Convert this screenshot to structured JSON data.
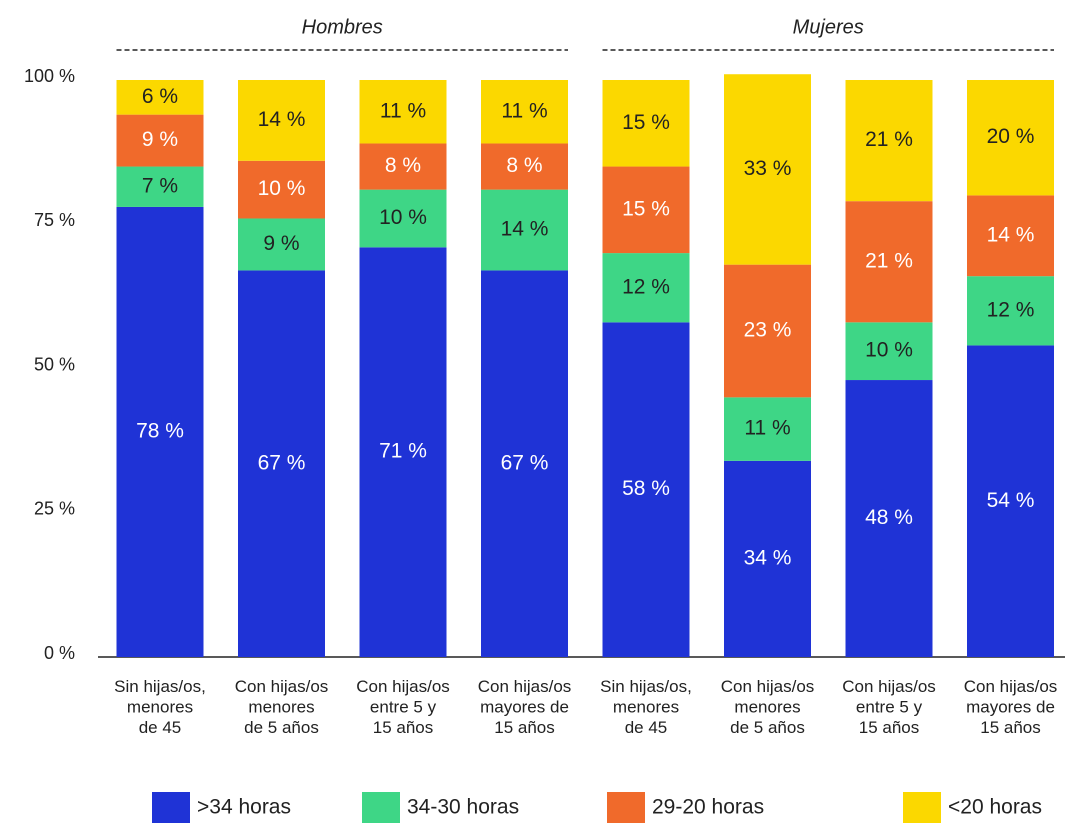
{
  "chart_data": {
    "type": "stacked_bar",
    "groups": [
      "Hombres",
      "Mujeres"
    ],
    "categories": [
      [
        "Sin hijas/os,",
        "menores",
        "de 45"
      ],
      [
        "Con hijas/os",
        "menores",
        "de 5 años"
      ],
      [
        "Con hijas/os",
        "entre 5 y",
        "15 años"
      ],
      [
        "Con hijas/os",
        "mayores de",
        "15 años"
      ],
      [
        "Sin hijas/os,",
        "menores",
        "de 45"
      ],
      [
        "Con hijas/os",
        "menores",
        "de 5 años"
      ],
      [
        "Con hijas/os",
        "entre 5 y",
        "15 años"
      ],
      [
        "Con hijas/os",
        "mayores de",
        "15 años"
      ]
    ],
    "series": [
      {
        "name": ">34 horas",
        "color": "#1f33d6",
        "values": [
          78,
          67,
          71,
          67,
          58,
          34,
          48,
          54
        ],
        "value_labels": [
          "78 %",
          "67 %",
          "71 %",
          "67 %",
          "58 %",
          "34 %",
          "48 %",
          "54 %"
        ]
      },
      {
        "name": "34-30 horas",
        "color": "#3ed686",
        "values": [
          7,
          9,
          10,
          14,
          12,
          11,
          10,
          12
        ],
        "value_labels": [
          "7 %",
          "9 %",
          "10 %",
          "14 %",
          "12 %",
          "11 %",
          "10 %",
          "12 %"
        ]
      },
      {
        "name": "29-20 horas",
        "color": "#f06a2b",
        "values": [
          9,
          10,
          8,
          8,
          15,
          23,
          21,
          14
        ],
        "value_labels": [
          "9 %",
          "10 %",
          "8 %",
          "8 %",
          "15 %",
          "23 %",
          "21 %",
          "14 %"
        ]
      },
      {
        "name": "<20 horas",
        "color": "#fbd800",
        "values": [
          6,
          14,
          11,
          11,
          15,
          33,
          21,
          20
        ],
        "value_labels": [
          "6 %",
          "14 %",
          "11 %",
          "11 %",
          "15 %",
          "33 %",
          "21 %",
          "20 %"
        ]
      }
    ],
    "ylim": [
      0,
      100
    ],
    "yticks": [
      {
        "value": 0,
        "label": "0 %"
      },
      {
        "value": 25,
        "label": "25 %"
      },
      {
        "value": 50,
        "label": "50 %"
      },
      {
        "value": 75,
        "label": "75 %"
      },
      {
        "value": 100,
        "label": "100 %"
      }
    ]
  }
}
